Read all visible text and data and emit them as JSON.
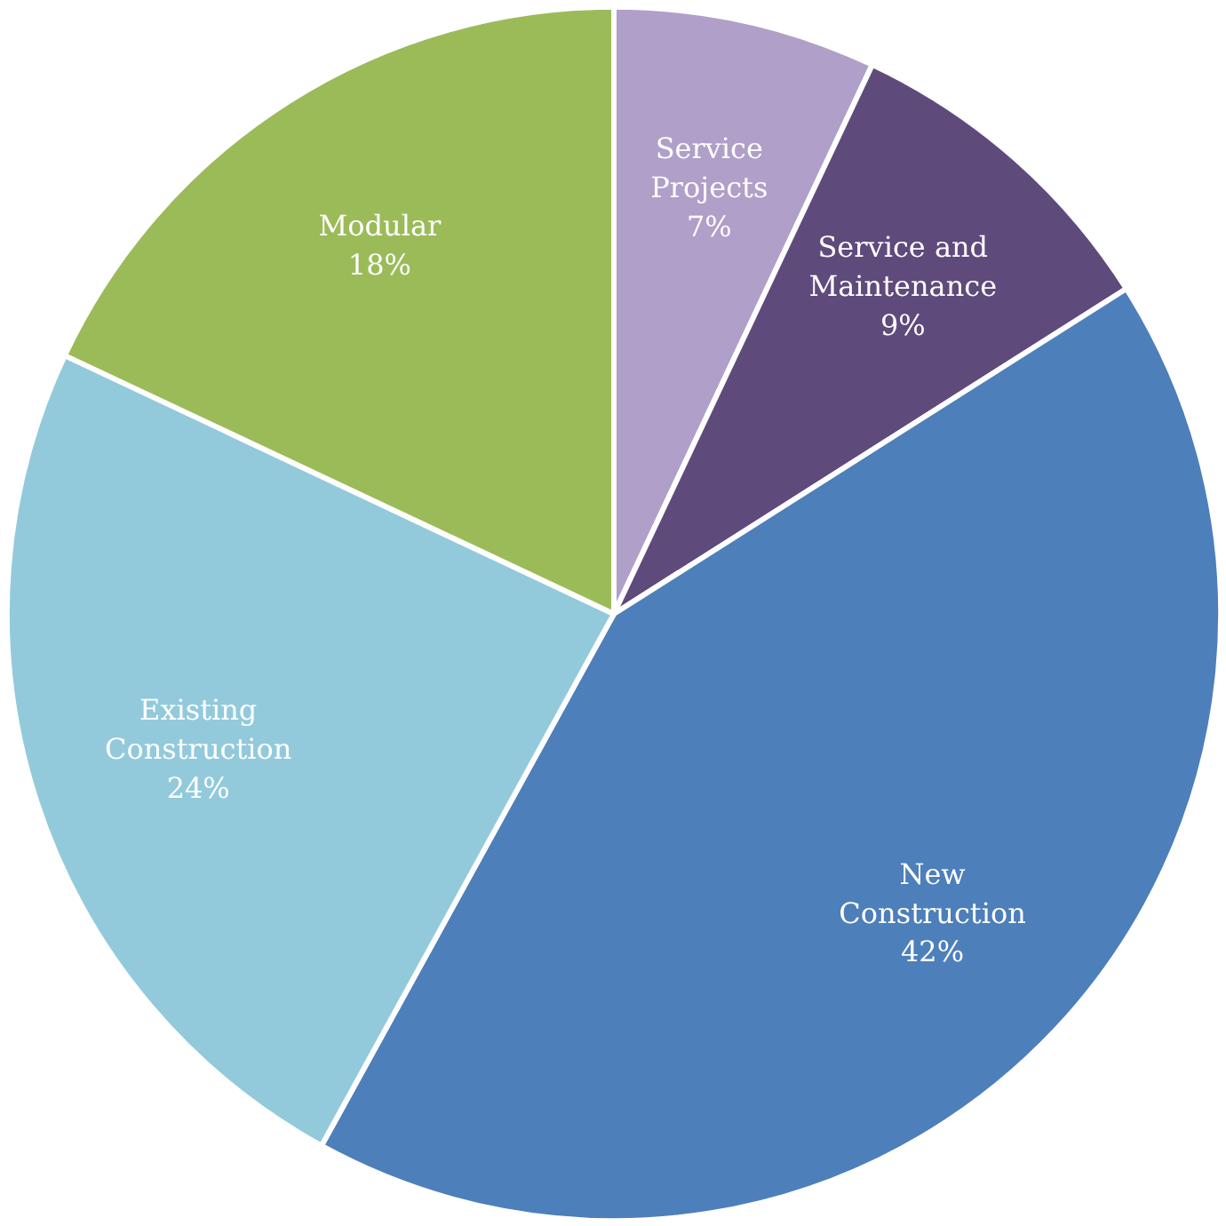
{
  "chart_data": {
    "type": "pie",
    "categories": [
      "Service Projects",
      "Service and Maintenance",
      "New Construction",
      "Existing Construction",
      "Modular"
    ],
    "values": [
      7,
      9,
      42,
      24,
      18
    ],
    "colors": [
      "#b09fc8",
      "#5f4a7c",
      "#4d7fba",
      "#93cadb",
      "#9bbb59"
    ],
    "value_labels": [
      "7%",
      "9%",
      "42%",
      "24%",
      "18%"
    ],
    "legend": false
  }
}
